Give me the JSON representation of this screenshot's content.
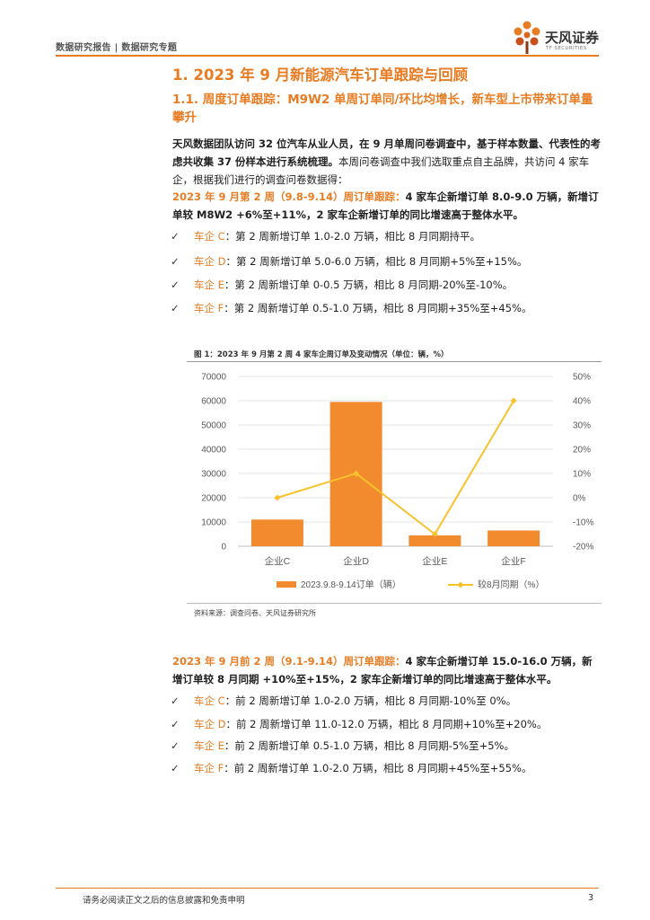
{
  "header": {
    "left_text": "数据研究报告 | 数据研究专题",
    "brand_name": "天风证券",
    "brand_sub": "TF SECURITIES",
    "accent_color": "#e87c23"
  },
  "section": {
    "h1": "1. 2023 年 9 月新能源汽车订单跟踪与回顾",
    "h2": "1.1. 周度订单跟踪：M9W2 单周订单同/环比均增长，新车型上市带来订单量攀升"
  },
  "intro": {
    "bold_part": "天风数据团队访问 32 位汽车从业人员，在 9 月单周问卷调查中，基于样本数量、代表性的考虑共收集 37 份样本进行系统梳理。",
    "rest": "本周问卷调查中我们选取重点自主品牌，共访问 4 家车企，根据我们进行的调查问卷数据得："
  },
  "block1": {
    "lead": "2023 年 9 月第 2 周（9.8-9.14）周订单跟踪：",
    "text": "4 家车企新增订单 8.0-9.0 万辆，新增订单较 M8W2 +6%至+11%，2 家车企新增订单的同比增速高于整体水平。",
    "bullets": [
      {
        "label": "车企 C",
        "text": "：第 2 周新增订单 1.0-2.0 万辆，相比 8 月同期持平。"
      },
      {
        "label": "车企 D",
        "text": "：第 2 周新增订单 5.0-6.0 万辆，相比 8 月同期+5%至+15%。"
      },
      {
        "label": "车企 E",
        "text": "：第 2 周新增订单 0-0.5 万辆，相比 8 月同期-20%至-10%。"
      },
      {
        "label": "车企 F",
        "text": "：第 2 周新增订单 0.5-1.0 万辆，相比 8 月同期+35%至+45%。"
      }
    ]
  },
  "figure": {
    "title": "图 1：2023 年 9 月第 2 周 4 家车企周订单及变动情况（单位：辆，%）",
    "source": "资料来源：调查问卷、天风证券研究所"
  },
  "chart_data": {
    "type": "bar",
    "categories": [
      "企业C",
      "企业D",
      "企业E",
      "企业F"
    ],
    "series": [
      {
        "name": "2023.9.8-9.14订单（辆）",
        "type": "bar",
        "axis": "left",
        "color": "#f28a2e",
        "values": [
          11000,
          59500,
          4500,
          6500
        ]
      },
      {
        "name": "较8月同期（%）",
        "type": "line",
        "axis": "right",
        "color": "#f8c22d",
        "values": [
          0,
          10,
          -15,
          40
        ]
      }
    ],
    "y_left": {
      "min": 0,
      "max": 70000,
      "ticks": [
        0,
        10000,
        20000,
        30000,
        40000,
        50000,
        60000,
        70000
      ],
      "tick_labels": [
        "0",
        "10000",
        "20000",
        "30000",
        "40000",
        "50000",
        "60000",
        "70000"
      ]
    },
    "y_right": {
      "min": -20,
      "max": 50,
      "ticks": [
        -20,
        -10,
        0,
        10,
        20,
        30,
        40,
        50
      ],
      "tick_labels": [
        "-20%",
        "-10%",
        "0%",
        "10%",
        "20%",
        "30%",
        "40%",
        "50%"
      ]
    },
    "grid": true,
    "legend_position": "bottom"
  },
  "block2": {
    "lead": "2023 年 9 月前 2 周（9.1-9.14）周订单跟踪：",
    "text": "4 家车企新增订单 15.0-16.0 万辆，新增订单较 8 月同期 +10%至+15%，2 家车企新增订单的同比增速高于整体水平。",
    "bullets": [
      {
        "label": "车企 C",
        "text": "：前 2 周新增订单 1.0-2.0 万辆，相比 8 月同期-10%至 0%。"
      },
      {
        "label": "车企 D",
        "text": "：前 2 周新增订单 11.0-12.0 万辆，相比 8 月同期+10%至+20%。"
      },
      {
        "label": "车企 E",
        "text": "：前 2 周新增订单 0.5-1.0 万辆，相比 8 月同期-5%至+5%。"
      },
      {
        "label": "车企 F",
        "text": "：前 2 周新增订单 1.0-2.0 万辆，相比 8 月同期+45%至+55%。"
      }
    ]
  },
  "footer": {
    "note": "请务必阅读正文之后的信息披露和免责申明",
    "page": "3"
  }
}
